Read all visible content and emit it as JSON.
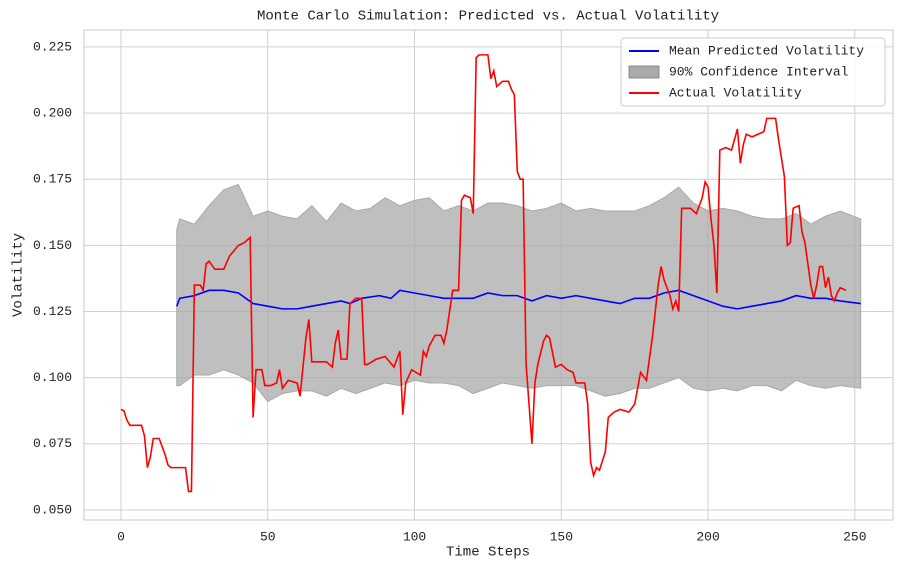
{
  "chart_data": {
    "type": "line",
    "title": "Monte Carlo Simulation: Predicted vs. Actual Volatility",
    "xlabel": "Time Steps",
    "ylabel": "Volatility",
    "xlim": [
      -12.6,
      263
    ],
    "xticks": [
      0,
      50,
      100,
      150,
      200,
      250
    ],
    "ylim": [
      0.0462,
      0.2314
    ],
    "yticks": [
      {
        "value": 0.05,
        "label": "0.050"
      },
      {
        "value": 0.075,
        "label": "0.075"
      },
      {
        "value": 0.1,
        "label": "0.100"
      },
      {
        "value": 0.125,
        "label": "0.125"
      },
      {
        "value": 0.15,
        "label": "0.150"
      },
      {
        "value": 0.175,
        "label": "0.175"
      },
      {
        "value": 0.2,
        "label": "0.200"
      },
      {
        "value": 0.225,
        "label": "0.225"
      }
    ],
    "grid": true,
    "legend": "upper right",
    "band": {
      "name": "90% Confidence Interval",
      "color": "#a9a9a9",
      "x": [
        19,
        20,
        25,
        30,
        35,
        40,
        45,
        50,
        55,
        60,
        65,
        70,
        75,
        80,
        85,
        90,
        95,
        100,
        105,
        110,
        115,
        120,
        125,
        130,
        135,
        140,
        145,
        150,
        155,
        160,
        165,
        170,
        175,
        180,
        185,
        190,
        195,
        200,
        205,
        210,
        215,
        220,
        225,
        230,
        235,
        240,
        245,
        252
      ],
      "upper": [
        0.156,
        0.16,
        0.158,
        0.165,
        0.171,
        0.173,
        0.161,
        0.163,
        0.161,
        0.16,
        0.165,
        0.159,
        0.166,
        0.163,
        0.164,
        0.168,
        0.165,
        0.167,
        0.168,
        0.163,
        0.165,
        0.163,
        0.166,
        0.166,
        0.165,
        0.163,
        0.164,
        0.166,
        0.163,
        0.164,
        0.163,
        0.163,
        0.163,
        0.165,
        0.168,
        0.172,
        0.166,
        0.163,
        0.164,
        0.163,
        0.161,
        0.16,
        0.16,
        0.162,
        0.158,
        0.161,
        0.163,
        0.16
      ],
      "lower": [
        0.097,
        0.097,
        0.101,
        0.101,
        0.103,
        0.101,
        0.098,
        0.091,
        0.094,
        0.095,
        0.095,
        0.093,
        0.096,
        0.094,
        0.096,
        0.098,
        0.097,
        0.099,
        0.098,
        0.098,
        0.097,
        0.094,
        0.096,
        0.098,
        0.097,
        0.096,
        0.097,
        0.097,
        0.097,
        0.095,
        0.093,
        0.094,
        0.096,
        0.096,
        0.098,
        0.1,
        0.096,
        0.095,
        0.096,
        0.095,
        0.097,
        0.097,
        0.095,
        0.099,
        0.097,
        0.096,
        0.097,
        0.096
      ]
    },
    "series": [
      {
        "name": "Mean Predicted Volatility",
        "color": "#0000ff",
        "x": [
          19,
          20,
          25,
          30,
          35,
          40,
          45,
          50,
          55,
          60,
          65,
          70,
          75,
          78,
          82,
          88,
          92,
          95,
          100,
          105,
          110,
          115,
          120,
          125,
          130,
          135,
          140,
          145,
          150,
          155,
          160,
          165,
          170,
          175,
          180,
          185,
          190,
          195,
          200,
          205,
          210,
          215,
          220,
          225,
          230,
          235,
          240,
          245,
          252
        ],
        "values": [
          0.127,
          0.13,
          0.131,
          0.133,
          0.133,
          0.132,
          0.128,
          0.127,
          0.126,
          0.126,
          0.127,
          0.128,
          0.129,
          0.128,
          0.13,
          0.131,
          0.13,
          0.133,
          0.132,
          0.131,
          0.13,
          0.13,
          0.13,
          0.132,
          0.131,
          0.131,
          0.129,
          0.131,
          0.13,
          0.131,
          0.13,
          0.129,
          0.128,
          0.13,
          0.13,
          0.132,
          0.133,
          0.131,
          0.129,
          0.127,
          0.126,
          0.127,
          0.128,
          0.129,
          0.131,
          0.13,
          0.13,
          0.129,
          0.128
        ]
      },
      {
        "name": "Actual Volatility",
        "color": "#ff0000",
        "x": [
          0,
          1,
          2,
          3,
          7,
          8,
          9,
          10,
          11,
          13,
          15,
          16,
          17,
          22,
          23,
          24,
          25,
          27,
          28,
          29,
          30,
          32,
          35,
          37,
          40,
          42,
          44,
          45,
          46,
          48,
          49,
          51,
          53,
          54,
          55,
          57,
          60,
          61,
          63,
          64,
          65,
          67,
          70,
          72,
          73,
          74,
          75,
          77,
          78,
          80,
          82,
          83,
          84,
          87,
          90,
          93,
          95,
          96,
          97,
          99,
          102,
          103,
          104,
          105,
          107,
          109,
          110,
          111,
          113,
          115,
          116,
          117,
          119,
          120,
          121,
          122,
          125,
          126,
          127,
          128,
          130,
          132,
          133,
          134,
          135,
          136,
          137,
          138,
          139,
          140,
          141,
          142,
          144,
          145,
          146,
          148,
          150,
          152,
          154,
          155,
          158,
          159,
          160,
          161,
          162,
          163,
          165,
          166,
          168,
          170,
          173,
          175,
          177,
          179,
          181,
          183,
          184,
          185,
          187,
          188,
          189,
          190,
          191,
          194,
          196,
          198,
          199,
          200,
          201,
          202,
          203,
          204,
          206,
          208,
          209,
          210,
          211,
          212,
          213,
          215,
          217,
          219,
          220,
          223,
          224,
          226,
          227,
          228,
          229,
          231,
          232,
          233,
          234,
          235,
          236,
          237,
          238,
          239,
          240,
          241,
          242,
          243,
          244,
          245,
          247
        ],
        "values": [
          0.088,
          0.0875,
          0.084,
          0.082,
          0.082,
          0.078,
          0.066,
          0.07,
          0.077,
          0.077,
          0.071,
          0.067,
          0.066,
          0.066,
          0.057,
          0.057,
          0.135,
          0.135,
          0.133,
          0.143,
          0.144,
          0.141,
          0.141,
          0.146,
          0.15,
          0.151,
          0.153,
          0.085,
          0.103,
          0.103,
          0.097,
          0.097,
          0.098,
          0.103,
          0.096,
          0.099,
          0.098,
          0.093,
          0.115,
          0.122,
          0.106,
          0.106,
          0.106,
          0.104,
          0.113,
          0.118,
          0.107,
          0.107,
          0.128,
          0.13,
          0.13,
          0.105,
          0.105,
          0.107,
          0.108,
          0.104,
          0.11,
          0.086,
          0.098,
          0.103,
          0.101,
          0.11,
          0.108,
          0.112,
          0.116,
          0.116,
          0.113,
          0.118,
          0.133,
          0.133,
          0.167,
          0.169,
          0.168,
          0.162,
          0.221,
          0.222,
          0.222,
          0.213,
          0.216,
          0.21,
          0.212,
          0.212,
          0.209,
          0.207,
          0.178,
          0.175,
          0.175,
          0.105,
          0.09,
          0.075,
          0.098,
          0.105,
          0.114,
          0.116,
          0.115,
          0.104,
          0.105,
          0.103,
          0.102,
          0.098,
          0.098,
          0.09,
          0.068,
          0.063,
          0.066,
          0.065,
          0.072,
          0.085,
          0.087,
          0.088,
          0.087,
          0.09,
          0.102,
          0.099,
          0.115,
          0.135,
          0.142,
          0.137,
          0.131,
          0.126,
          0.129,
          0.125,
          0.164,
          0.164,
          0.162,
          0.168,
          0.174,
          0.172,
          0.16,
          0.15,
          0.132,
          0.186,
          0.187,
          0.186,
          0.19,
          0.194,
          0.181,
          0.188,
          0.192,
          0.191,
          0.192,
          0.193,
          0.198,
          0.198,
          0.19,
          0.176,
          0.15,
          0.151,
          0.164,
          0.165,
          0.155,
          0.151,
          0.143,
          0.135,
          0.13,
          0.135,
          0.142,
          0.142,
          0.134,
          0.138,
          0.131,
          0.129,
          0.132,
          0.134,
          0.133
        ]
      }
    ]
  }
}
